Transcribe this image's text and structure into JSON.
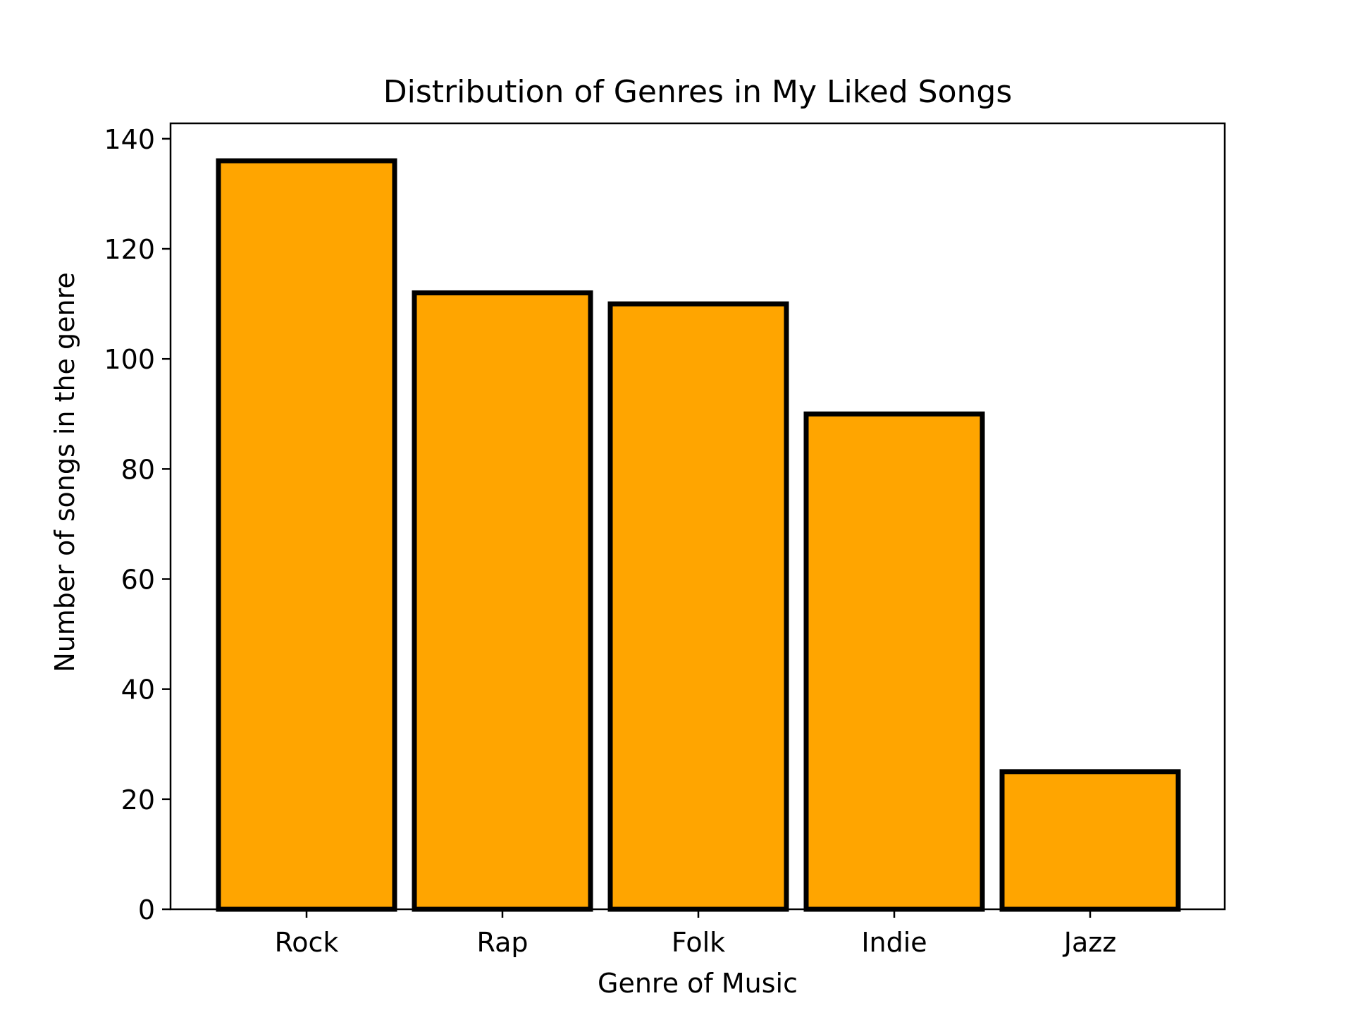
{
  "chart_data": {
    "type": "bar",
    "title": "Distribution of Genres in My Liked Songs",
    "xlabel": "Genre of Music",
    "ylabel": "Number of songs in the genre",
    "categories": [
      "Rock",
      "Rap",
      "Folk",
      "Indie",
      "Jazz"
    ],
    "values": [
      136,
      112,
      110,
      90,
      25
    ],
    "ylim": [
      0,
      142.8
    ],
    "yticks": [
      "0",
      "20",
      "40",
      "60",
      "80",
      "100",
      "120",
      "140"
    ],
    "grid": false,
    "legend": "none",
    "colors": {
      "bar_fill": "#FFA500",
      "bar_edge": "#000000",
      "axis": "#000000",
      "background": "#ffffff"
    }
  }
}
